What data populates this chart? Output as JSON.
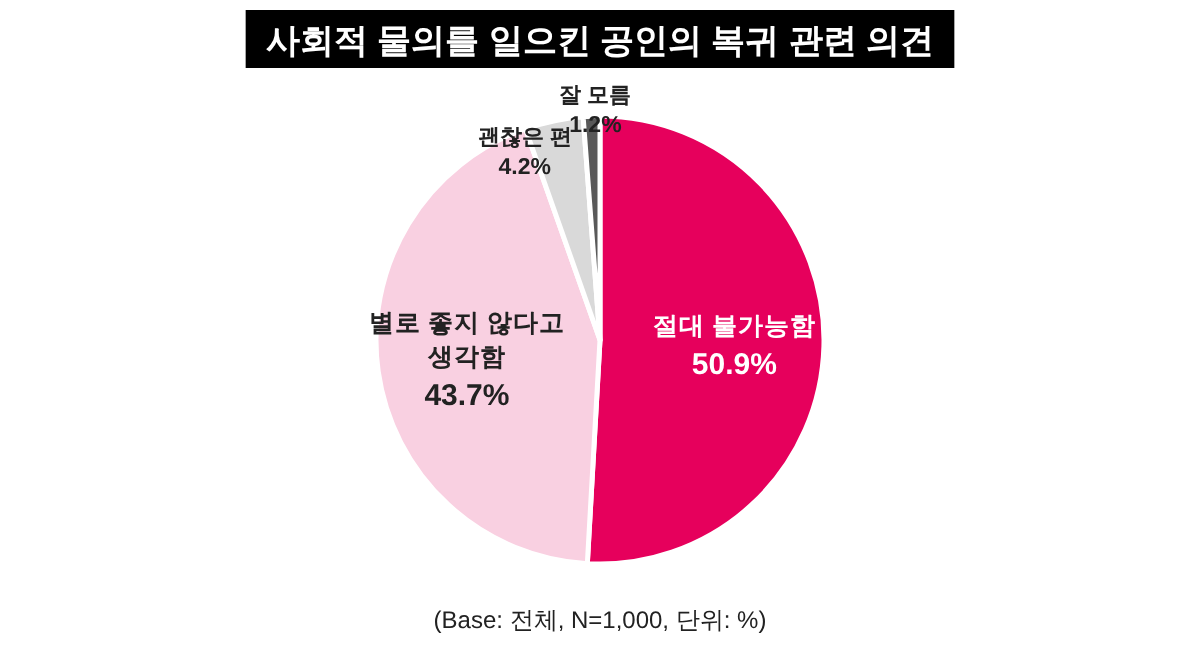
{
  "chart_data": {
    "type": "pie",
    "title": "사회적 물의를 일으킨 공인의 복귀 관련 의견",
    "categories": [
      "절대 불가능함",
      "별로 좋지 않다고 생각함",
      "괜찮은 편",
      "잘 모름"
    ],
    "values": [
      50.9,
      43.7,
      4.2,
      1.2
    ],
    "value_labels": [
      "50.9%",
      "43.7%",
      "4.2%",
      "1.2%"
    ],
    "colors": [
      "#e6005c",
      "#f9d0e1",
      "#d9d9d9",
      "#595959"
    ],
    "annotations": [
      "(Base: 전체, N=1,000, 단위: %)"
    ]
  }
}
